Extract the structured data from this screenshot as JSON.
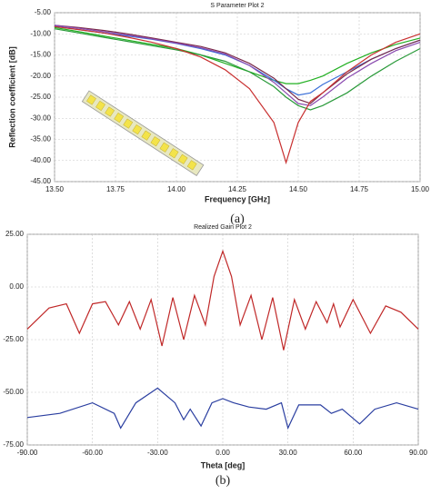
{
  "chart_data": [
    {
      "type": "line",
      "title": "S Parameter Plot 2",
      "xlabel": "Frequency [GHz]",
      "ylabel": "Reflection coefficient [dB]",
      "caption": "(a)",
      "grid": true,
      "xlim": [
        13.5,
        15
      ],
      "ylim": [
        -45,
        -5
      ],
      "xticks": [
        {
          "value": 13.5,
          "label": "13.50"
        },
        {
          "value": 13.75,
          "label": "13.75"
        },
        {
          "value": 14,
          "label": "14.00"
        },
        {
          "value": 14.25,
          "label": "14.25"
        },
        {
          "value": 14.5,
          "label": "14.50"
        },
        {
          "value": 14.75,
          "label": "14.75"
        },
        {
          "value": 15,
          "label": "15.00"
        }
      ],
      "yticks": [
        {
          "value": -5,
          "label": "-5.00"
        },
        {
          "value": -10,
          "label": "-10.00"
        },
        {
          "value": -15,
          "label": "-15.00"
        },
        {
          "value": -20,
          "label": "-20.00"
        },
        {
          "value": -25,
          "label": "-25.00"
        },
        {
          "value": -30,
          "label": "-30.00"
        },
        {
          "value": -35,
          "label": "-35.00"
        },
        {
          "value": -40,
          "label": "-40.00"
        },
        {
          "value": -45,
          "label": "-45.00"
        }
      ],
      "x": [
        13.5,
        13.6,
        13.7,
        13.8,
        13.9,
        14.0,
        14.1,
        14.2,
        14.3,
        14.4,
        14.45,
        14.5,
        14.55,
        14.6,
        14.7,
        14.8,
        14.9,
        15.0
      ],
      "series": [
        {
          "color": "#22b022",
          "values": [
            -8.5,
            -9.5,
            -10.5,
            -11.5,
            -12.5,
            -13.5,
            -15,
            -17,
            -19,
            -21,
            -21.8,
            -21.8,
            -21,
            -20,
            -17,
            -14.5,
            -12.5,
            -11
          ]
        },
        {
          "color": "#3a6fd8",
          "values": [
            -8.2,
            -9,
            -9.8,
            -10.5,
            -11.3,
            -12.3,
            -13.5,
            -15,
            -17.5,
            -21,
            -23,
            -24.5,
            -24,
            -22,
            -19,
            -16,
            -13.5,
            -11.5
          ]
        },
        {
          "color": "#7a2a4a",
          "values": [
            -8,
            -8.5,
            -9.2,
            -10,
            -11,
            -12,
            -13,
            -14.5,
            -17,
            -20.5,
            -23,
            -25.5,
            -26.5,
            -24,
            -19.5,
            -16,
            -13.5,
            -11.5
          ]
        },
        {
          "color": "#8a4ab0",
          "values": [
            -8,
            -8.7,
            -9.5,
            -10.3,
            -11.2,
            -12.2,
            -13.3,
            -14.8,
            -17.5,
            -21.5,
            -24,
            -26.5,
            -27,
            -25,
            -20.5,
            -17,
            -14,
            -12
          ]
        },
        {
          "color": "#2a9a3a",
          "values": [
            -8.8,
            -9.8,
            -10.8,
            -11.8,
            -12.8,
            -13.8,
            -15,
            -16.5,
            -19,
            -22.5,
            -25,
            -27,
            -28,
            -27,
            -24,
            -20,
            -16.5,
            -13.5
          ]
        },
        {
          "color": "#c83030",
          "values": [
            -8.3,
            -9,
            -9.8,
            -10.8,
            -12,
            -13.5,
            -15.5,
            -18.5,
            -23,
            -31,
            -40.5,
            -31,
            -26,
            -24,
            -19,
            -15,
            -12,
            -10
          ]
        }
      ]
    },
    {
      "type": "line",
      "title": "Realized Gain Plot 2",
      "xlabel": "Theta [deg]",
      "caption": "(b)",
      "grid": true,
      "xlim": [
        -90,
        90
      ],
      "ylim": [
        -75,
        25
      ],
      "xticks": [
        {
          "value": -90,
          "label": "-90.00"
        },
        {
          "value": -60,
          "label": "-60.00"
        },
        {
          "value": -30,
          "label": "-30.00"
        },
        {
          "value": 0,
          "label": "0.00"
        },
        {
          "value": 30,
          "label": "30.00"
        },
        {
          "value": 60,
          "label": "60.00"
        },
        {
          "value": 90,
          "label": "90.00"
        }
      ],
      "yticks": [
        {
          "value": 25,
          "label": "25.00"
        },
        {
          "value": 0,
          "label": "0.00"
        },
        {
          "value": -25,
          "label": "-25.00"
        },
        {
          "value": -50,
          "label": "-50.00"
        },
        {
          "value": -75,
          "label": "-75.00"
        }
      ],
      "series": [
        {
          "color": "#c02828",
          "x": [
            -90,
            -80,
            -72,
            -66,
            -60,
            -54,
            -48,
            -43,
            -38,
            -33,
            -28,
            -23,
            -18,
            -13,
            -8,
            -4,
            0,
            4,
            8,
            13,
            18,
            23,
            28,
            33,
            38,
            43,
            48,
            51,
            54,
            60,
            68,
            75,
            82,
            90
          ],
          "values": [
            -20,
            -10,
            -8,
            -22,
            -8,
            -7,
            -18,
            -7,
            -20,
            -6,
            -28,
            -5,
            -25,
            -4,
            -18,
            5,
            17,
            5,
            -18,
            -4,
            -25,
            -5,
            -30,
            -6,
            -20,
            -7,
            -17,
            -8,
            -19,
            -6,
            -22,
            -9,
            -12,
            -20
          ]
        },
        {
          "color": "#2a3ea0",
          "x": [
            -90,
            -75,
            -60,
            -50,
            -47,
            -40,
            -30,
            -22,
            -18,
            -15,
            -10,
            -5,
            0,
            5,
            12,
            20,
            27,
            30,
            35,
            45,
            50,
            55,
            63,
            70,
            80,
            90
          ],
          "values": [
            -62,
            -60,
            -55,
            -60,
            -67,
            -55,
            -48,
            -55,
            -63,
            -58,
            -66,
            -55,
            -53,
            -55,
            -57,
            -58,
            -55,
            -67,
            -56,
            -56,
            -60,
            -58,
            -65,
            -58,
            -55,
            -58
          ]
        }
      ]
    }
  ]
}
